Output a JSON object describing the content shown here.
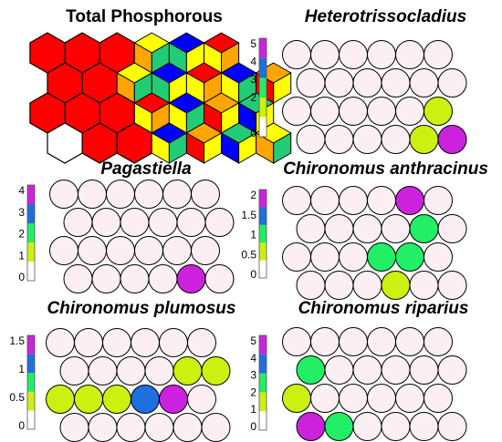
{
  "colors": {
    "empty": "#FCEFF4",
    "levels": [
      "#FFFFFF",
      "#CCF00F",
      "#22EE66",
      "#1E6FE0",
      "#CC22DD"
    ],
    "tp_palette": {
      "R": "#FF0000",
      "O": "#FFA500",
      "Y": "#FFFF00",
      "G": "#22CC77",
      "B": "#0000FF",
      "W": "#FFFFFF"
    }
  },
  "chart_data": [
    {
      "type": "heatmap",
      "title": "Total Phosphorous",
      "description": "SOM hexagonal component plane (colour-only, no scale printed)",
      "rows": [
        "RRRBGG?",
        "RRRYOGB",
        "RRROOOG",
        "WRRYOBB"
      ]
    },
    {
      "type": "heatmap",
      "title": "Heterotrissocladius",
      "colorbar_ticks": [
        "5",
        "4",
        "3",
        "2",
        "1",
        "0"
      ],
      "colorbar_max": 5,
      "cells": [
        {
          "row": 2,
          "col": 5,
          "value": 1
        },
        {
          "row": 3,
          "col": 4,
          "value": 1
        },
        {
          "row": 3,
          "col": 5,
          "value": 5
        }
      ]
    },
    {
      "type": "heatmap",
      "title": "Pagastiella",
      "colorbar_ticks": [
        "4",
        "3",
        "2",
        "1",
        "0"
      ],
      "colorbar_max": 4,
      "cells": [
        {
          "row": 3,
          "col": 4,
          "value": 4
        }
      ]
    },
    {
      "type": "heatmap",
      "title": "Chironomus anthracinus",
      "colorbar_ticks": [
        "2",
        "1.5",
        "1",
        "0.5",
        "0"
      ],
      "colorbar_max": 2,
      "cells": [
        {
          "row": 0,
          "col": 4,
          "value": 2
        },
        {
          "row": 1,
          "col": 4,
          "value": 1
        },
        {
          "row": 2,
          "col": 3,
          "value": 1
        },
        {
          "row": 2,
          "col": 4,
          "value": 1
        },
        {
          "row": 3,
          "col": 3,
          "value": 0.5
        }
      ]
    },
    {
      "type": "heatmap",
      "title": "Chironomus plumosus",
      "colorbar_ticks": [
        "1.5",
        "1",
        "0.5",
        "0"
      ],
      "colorbar_max": 2,
      "cells": [
        {
          "row": 1,
          "col": 4,
          "value": 0.5
        },
        {
          "row": 1,
          "col": 5,
          "value": 0.5
        },
        {
          "row": 2,
          "col": 0,
          "value": 0.5
        },
        {
          "row": 2,
          "col": 1,
          "value": 0.5
        },
        {
          "row": 2,
          "col": 2,
          "value": 0.5
        },
        {
          "row": 2,
          "col": 3,
          "value": 1.2
        },
        {
          "row": 2,
          "col": 4,
          "value": 2
        }
      ]
    },
    {
      "type": "heatmap",
      "title": "Chironomus riparius",
      "colorbar_ticks": [
        "5",
        "4",
        "3",
        "2",
        "1",
        "0"
      ],
      "colorbar_max": 5,
      "cells": [
        {
          "row": 1,
          "col": 0,
          "value": 2.5
        },
        {
          "row": 2,
          "col": 0,
          "value": 1
        },
        {
          "row": 3,
          "col": 0,
          "value": 5
        },
        {
          "row": 3,
          "col": 1,
          "value": 2.5
        }
      ]
    }
  ]
}
